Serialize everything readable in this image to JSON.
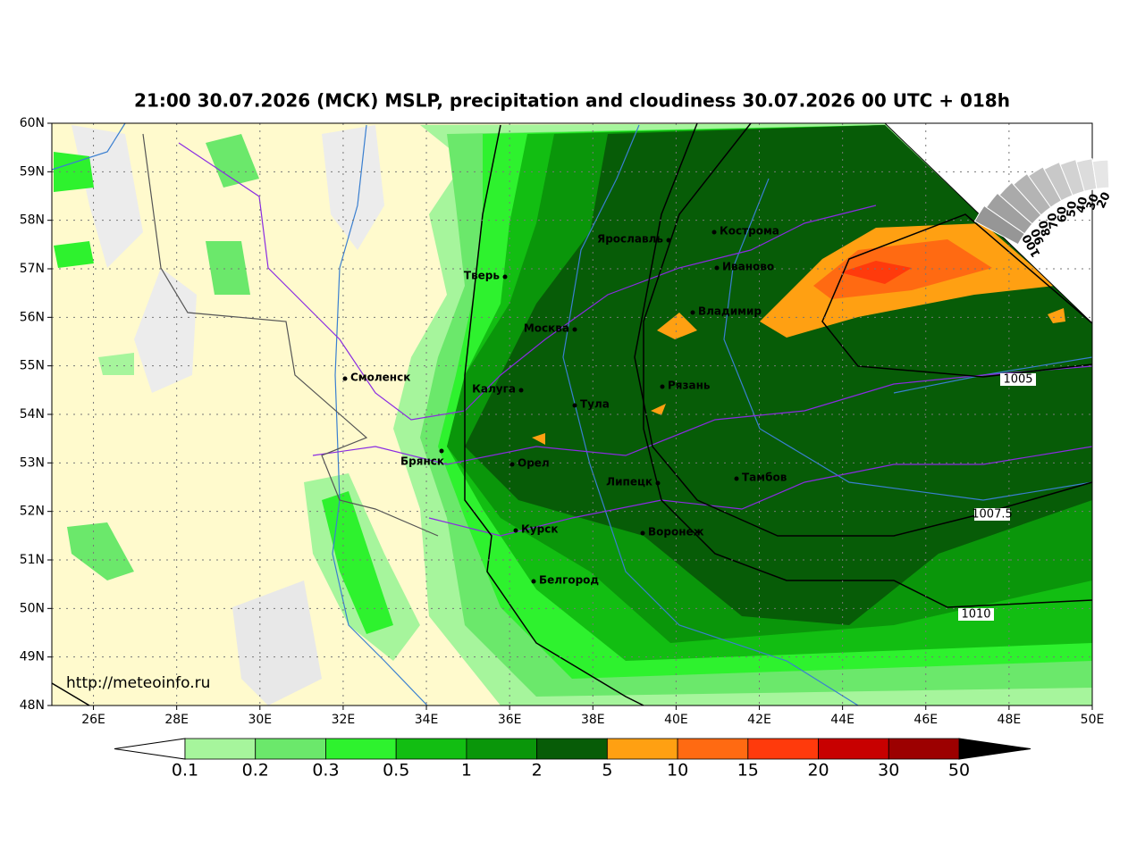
{
  "header": {
    "title": "21:00 30.07.2026 (МСК) MSLP, precipitation and cloudiness 30.07.2026 00 UTC + 018h"
  },
  "map": {
    "lat_ticks": [
      {
        "value": 60,
        "label": "60N"
      },
      {
        "value": 59,
        "label": "59N"
      },
      {
        "value": 58,
        "label": "58N"
      },
      {
        "value": 57,
        "label": "57N"
      },
      {
        "value": 56,
        "label": "56N"
      },
      {
        "value": 55,
        "label": "55N"
      },
      {
        "value": 54,
        "label": "54N"
      },
      {
        "value": 53,
        "label": "53N"
      },
      {
        "value": 52,
        "label": "52N"
      },
      {
        "value": 51,
        "label": "51N"
      },
      {
        "value": 50,
        "label": "50N"
      },
      {
        "value": 49,
        "label": "49N"
      },
      {
        "value": 48,
        "label": "48N"
      }
    ],
    "lon_ticks": [
      {
        "value": 26,
        "label": "26E"
      },
      {
        "value": 28,
        "label": "28E"
      },
      {
        "value": 30,
        "label": "30E"
      },
      {
        "value": 32,
        "label": "32E"
      },
      {
        "value": 34,
        "label": "34E"
      },
      {
        "value": 36,
        "label": "36E"
      },
      {
        "value": 38,
        "label": "38E"
      },
      {
        "value": 40,
        "label": "40E"
      },
      {
        "value": 42,
        "label": "42E"
      },
      {
        "value": 44,
        "label": "44E"
      },
      {
        "value": 46,
        "label": "46E"
      },
      {
        "value": 48,
        "label": "48E"
      },
      {
        "value": 50,
        "label": "50E"
      }
    ],
    "cities": [
      "Ярославль",
      "Кострома",
      "Иваново",
      "Тверь",
      "Владимир",
      "Москва",
      "Смоленск",
      "Калуга",
      "Рязань",
      "Тула",
      "Брянск",
      "Орел",
      "Липецк",
      "Тамбов",
      "Курск",
      "Воронеж",
      "Белгород"
    ],
    "isobars": [
      "1005",
      "1007.5",
      "1010"
    ],
    "url": "http://meteoinfo.ru"
  },
  "colorbar": {
    "levels": [
      0.1,
      0.2,
      0.3,
      0.5,
      1,
      2,
      5,
      10,
      15,
      20,
      30,
      50
    ],
    "colors": [
      "#a6f59c",
      "#6be86b",
      "#2ef22e",
      "#12be12",
      "#0a960a",
      "#075c07",
      "#ffa012",
      "#ff6a12",
      "#ff3a0c",
      "#c80000",
      "#9c0000"
    ]
  },
  "cloudiness": {
    "labels": [
      "100",
      "90",
      "80",
      "70",
      "60",
      "50",
      "40",
      "30",
      "20"
    ]
  }
}
